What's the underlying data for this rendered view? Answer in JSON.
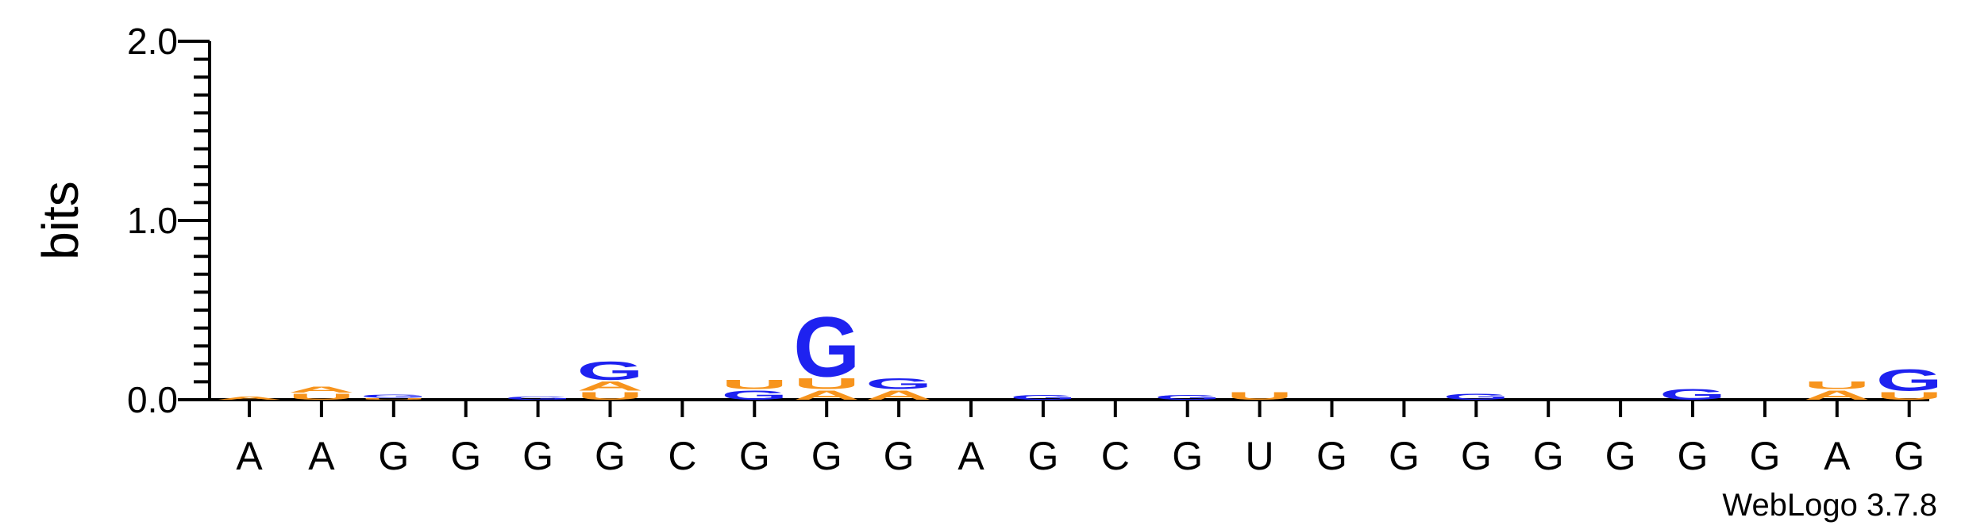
{
  "chart_data": {
    "type": "sequence-logo",
    "ylabel": "bits",
    "ylim": [
      0,
      2.0
    ],
    "yticks": [
      "0.0",
      "1.0",
      "2.0"
    ],
    "colors": {
      "A": "#f7941d",
      "U": "#f7941d",
      "G": "#1e22f0",
      "C": "#1e22f0"
    },
    "credit": "WebLogo 3.7.8",
    "positions": [
      {
        "label": "A",
        "stack": [
          {
            "letter": "A",
            "bits": 0.02
          }
        ]
      },
      {
        "label": "A",
        "stack": [
          {
            "letter": "U",
            "bits": 0.04
          },
          {
            "letter": "A",
            "bits": 0.04
          }
        ]
      },
      {
        "label": "G",
        "stack": [
          {
            "letter": "U",
            "bits": 0.01
          },
          {
            "letter": "G",
            "bits": 0.02
          }
        ]
      },
      {
        "label": "G",
        "stack": []
      },
      {
        "label": "G",
        "stack": [
          {
            "letter": "G",
            "bits": 0.02
          }
        ]
      },
      {
        "label": "G",
        "stack": [
          {
            "letter": "U",
            "bits": 0.05
          },
          {
            "letter": "A",
            "bits": 0.06
          },
          {
            "letter": "G",
            "bits": 0.12
          }
        ]
      },
      {
        "label": "C",
        "stack": []
      },
      {
        "label": "G",
        "stack": [
          {
            "letter": "G",
            "bits": 0.06
          },
          {
            "letter": "U",
            "bits": 0.06
          }
        ]
      },
      {
        "label": "G",
        "stack": [
          {
            "letter": "A",
            "bits": 0.06
          },
          {
            "letter": "U",
            "bits": 0.07
          },
          {
            "letter": "G",
            "bits": 0.39
          }
        ]
      },
      {
        "label": "G",
        "stack": [
          {
            "letter": "A",
            "bits": 0.06
          },
          {
            "letter": "G",
            "bits": 0.07
          }
        ]
      },
      {
        "label": "A",
        "stack": []
      },
      {
        "label": "G",
        "stack": [
          {
            "letter": "G",
            "bits": 0.03
          }
        ]
      },
      {
        "label": "C",
        "stack": []
      },
      {
        "label": "G",
        "stack": [
          {
            "letter": "G",
            "bits": 0.03
          }
        ]
      },
      {
        "label": "U",
        "stack": [
          {
            "letter": "U",
            "bits": 0.05
          }
        ]
      },
      {
        "label": "G",
        "stack": []
      },
      {
        "label": "G",
        "stack": []
      },
      {
        "label": "G",
        "stack": [
          {
            "letter": "G",
            "bits": 0.04
          }
        ]
      },
      {
        "label": "G",
        "stack": []
      },
      {
        "label": "G",
        "stack": []
      },
      {
        "label": "G",
        "stack": [
          {
            "letter": "G",
            "bits": 0.07
          }
        ]
      },
      {
        "label": "G",
        "stack": []
      },
      {
        "label": "A",
        "stack": [
          {
            "letter": "A",
            "bits": 0.06
          },
          {
            "letter": "U",
            "bits": 0.05
          }
        ]
      },
      {
        "label": "G",
        "stack": [
          {
            "letter": "U",
            "bits": 0.05
          },
          {
            "letter": "G",
            "bits": 0.14
          }
        ]
      }
    ]
  }
}
